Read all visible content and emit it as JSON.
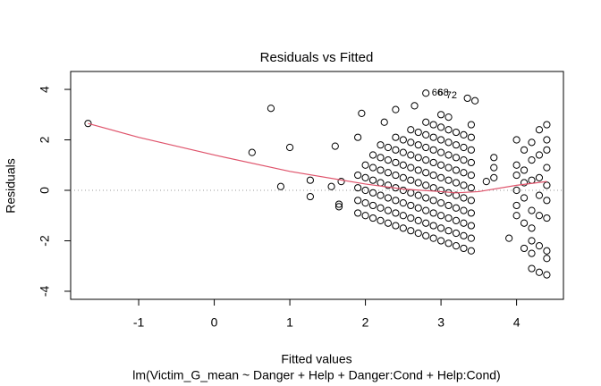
{
  "chart_data": {
    "type": "scatter",
    "title": "Residuals vs Fitted",
    "x_label": "Fitted values",
    "subtitle": "lm(Victim_G_mean ~ Danger + Help + Danger:Cond + Help:Cond)",
    "y_label": "Residuals",
    "xlim": [
      -1.9,
      4.62
    ],
    "ylim": [
      -4.32,
      4.71
    ],
    "xticks": [
      -1,
      0,
      1,
      2,
      3,
      4
    ],
    "yticks": [
      -4,
      -2,
      0,
      2,
      4
    ],
    "color": "#000000",
    "hline": 0,
    "x": [
      -1.67,
      0.5,
      0.75,
      0.88,
      1.0,
      1.27,
      1.27,
      1.6,
      1.65,
      1.65,
      1.68,
      1.55,
      1.9,
      1.95,
      2.25,
      2.4,
      2.65,
      3.45,
      3.7,
      3.7,
      3.7,
      3.9,
      3.6,
      3.35,
      2.8,
      1.9,
      1.9,
      1.9,
      1.9,
      2.0,
      2.0,
      2.0,
      2.0,
      2.0,
      2.1,
      2.1,
      2.1,
      2.1,
      2.1,
      2.1,
      2.2,
      2.2,
      2.2,
      2.2,
      2.2,
      2.2,
      2.2,
      2.3,
      2.3,
      2.3,
      2.3,
      2.3,
      2.3,
      2.3,
      2.4,
      2.4,
      2.4,
      2.4,
      2.4,
      2.4,
      2.4,
      2.4,
      2.5,
      2.5,
      2.5,
      2.5,
      2.5,
      2.5,
      2.5,
      2.5,
      2.6,
      2.6,
      2.6,
      2.6,
      2.6,
      2.6,
      2.6,
      2.6,
      2.6,
      2.7,
      2.7,
      2.7,
      2.7,
      2.7,
      2.7,
      2.7,
      2.7,
      2.7,
      2.8,
      2.8,
      2.8,
      2.8,
      2.8,
      2.8,
      2.8,
      2.8,
      2.8,
      2.8,
      2.9,
      2.9,
      2.9,
      2.9,
      2.9,
      2.9,
      2.9,
      2.9,
      2.9,
      2.9,
      3.0,
      3.0,
      3.0,
      3.0,
      3.0,
      3.0,
      3.0,
      3.0,
      3.0,
      3.0,
      3.0,
      3.1,
      3.1,
      3.1,
      3.1,
      3.1,
      3.1,
      3.1,
      3.1,
      3.1,
      3.1,
      3.1,
      3.2,
      3.2,
      3.2,
      3.2,
      3.2,
      3.2,
      3.2,
      3.2,
      3.2,
      3.2,
      3.3,
      3.3,
      3.3,
      3.3,
      3.3,
      3.3,
      3.3,
      3.3,
      3.3,
      3.3,
      3.4,
      3.4,
      3.4,
      3.4,
      3.4,
      3.4,
      3.4,
      3.4,
      3.4,
      3.4,
      3.4,
      4.0,
      4.0,
      4.0,
      4.0,
      4.0,
      4.0,
      4.1,
      4.1,
      4.1,
      4.1,
      4.1,
      4.1,
      4.2,
      4.2,
      4.2,
      4.2,
      4.2,
      4.2,
      4.2,
      4.2,
      4.3,
      4.3,
      4.3,
      4.3,
      4.3,
      4.3,
      4.3,
      4.4,
      4.4,
      4.4,
      4.4,
      4.4,
      4.4,
      4.4,
      4.4,
      4.4,
      4.4
    ],
    "values": [
      2.65,
      1.5,
      3.25,
      0.15,
      1.7,
      0.4,
      -0.25,
      1.75,
      -0.65,
      -0.55,
      0.35,
      0.15,
      2.1,
      3.05,
      2.7,
      3.2,
      3.35,
      3.55,
      1.3,
      0.9,
      0.5,
      -1.9,
      0.35,
      3.65,
      3.85,
      -0.9,
      -0.4,
      0.1,
      0.6,
      -1.0,
      -0.5,
      0.0,
      0.5,
      1.0,
      -1.1,
      -0.6,
      -0.1,
      0.4,
      0.9,
      1.4,
      -1.2,
      -0.7,
      -0.2,
      0.3,
      0.8,
      1.3,
      1.8,
      -1.3,
      -0.8,
      -0.3,
      0.2,
      0.7,
      1.2,
      1.7,
      -1.4,
      -0.9,
      -0.4,
      0.1,
      0.6,
      1.1,
      1.6,
      2.1,
      -1.5,
      -1.0,
      -0.5,
      0.0,
      0.5,
      1.0,
      1.5,
      2.0,
      -1.6,
      -1.1,
      -0.6,
      -0.1,
      0.4,
      0.9,
      1.4,
      1.9,
      2.4,
      -1.7,
      -1.2,
      -0.7,
      -0.2,
      0.3,
      0.8,
      1.3,
      1.8,
      2.3,
      -1.8,
      -1.3,
      -0.8,
      -0.3,
      0.2,
      0.7,
      1.2,
      1.7,
      2.2,
      2.7,
      -1.9,
      -1.4,
      -0.9,
      -0.4,
      0.1,
      0.6,
      1.1,
      1.6,
      2.1,
      2.6,
      -2.0,
      -1.5,
      -1.0,
      -0.5,
      0.0,
      0.5,
      1.0,
      1.5,
      2.0,
      2.5,
      3.0,
      -2.1,
      -1.6,
      -1.1,
      -0.6,
      -0.1,
      0.4,
      0.9,
      1.4,
      1.9,
      2.4,
      2.9,
      -2.2,
      -1.7,
      -1.2,
      -0.7,
      -0.2,
      0.3,
      0.8,
      1.3,
      1.8,
      2.3,
      -2.3,
      -1.8,
      -1.3,
      -0.8,
      -0.3,
      0.2,
      0.7,
      1.2,
      1.7,
      2.2,
      -2.4,
      -1.9,
      -1.4,
      -0.9,
      -0.4,
      0.1,
      0.6,
      1.1,
      1.6,
      2.1,
      2.6,
      -1.0,
      -0.6,
      0.0,
      0.6,
      1.0,
      2.0,
      -2.3,
      -1.3,
      -0.3,
      0.3,
      0.8,
      1.6,
      -3.1,
      -2.5,
      -2.0,
      -1.5,
      -0.8,
      0.4,
      1.2,
      1.9,
      -3.25,
      -2.2,
      -1.0,
      -0.2,
      0.5,
      1.4,
      2.4,
      -3.35,
      -2.7,
      -2.4,
      -1.1,
      -0.4,
      0.2,
      0.9,
      1.6,
      2.0,
      2.6
    ],
    "smooth": {
      "color": "#df536b",
      "x": [
        -1.67,
        -1,
        0,
        1,
        2,
        2.5,
        3,
        3.2,
        3.5,
        4,
        4.4
      ],
      "values": [
        2.65,
        2.1,
        1.4,
        0.75,
        0.25,
        0.05,
        -0.05,
        -0.1,
        -0.05,
        0.2,
        0.35
      ]
    },
    "point_labels": [
      {
        "text": "66",
        "x": 2.95,
        "y": 3.85
      },
      {
        "text": "68",
        "x": 3.03,
        "y": 3.85
      },
      {
        "text": "72",
        "x": 3.14,
        "y": 3.75
      }
    ]
  }
}
